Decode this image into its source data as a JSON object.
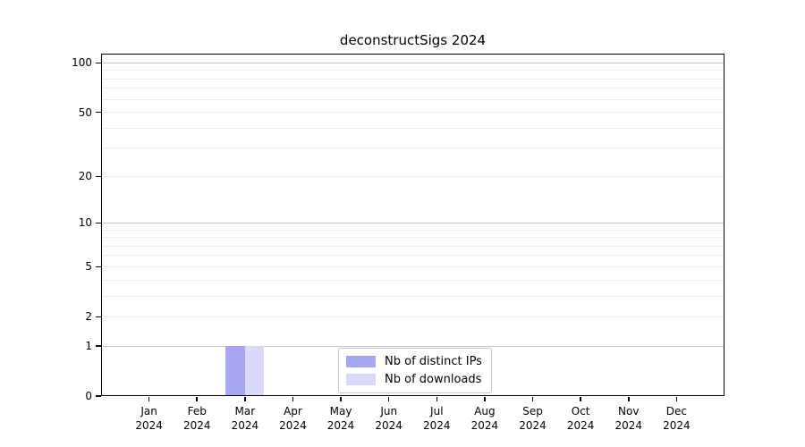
{
  "title": "deconstructSigs 2024",
  "chart_data": {
    "type": "bar",
    "title": "deconstructSigs 2024",
    "xlabel": "",
    "ylabel": "",
    "categories": [
      "Jan",
      "Feb",
      "Mar",
      "Apr",
      "May",
      "Jun",
      "Jul",
      "Aug",
      "Sep",
      "Oct",
      "Nov",
      "Dec"
    ],
    "category_year": "2024",
    "series": [
      {
        "name": "Nb of distinct IPs",
        "color": "#a7a7f0",
        "values": [
          0,
          0,
          1,
          0,
          0,
          0,
          0,
          0,
          0,
          0,
          0,
          0
        ]
      },
      {
        "name": "Nb of downloads",
        "color": "#d9d9f8",
        "values": [
          0,
          0,
          1,
          0,
          0,
          0,
          0,
          0,
          0,
          0,
          0,
          0
        ]
      }
    ],
    "y_axis": {
      "scale": "log1p",
      "ticks": [
        0,
        1,
        2,
        5,
        10,
        20,
        50,
        100
      ],
      "minor_ticks": [
        3,
        4,
        6,
        7,
        8,
        9,
        30,
        40,
        60,
        70,
        80,
        90
      ],
      "major_grid_values": [
        1,
        10,
        100
      ],
      "max": 114
    },
    "grid": {
      "on": true,
      "major_color": "#c6c6c6",
      "minor_color": "#ececec"
    },
    "legend": {
      "position": "lower center"
    }
  }
}
